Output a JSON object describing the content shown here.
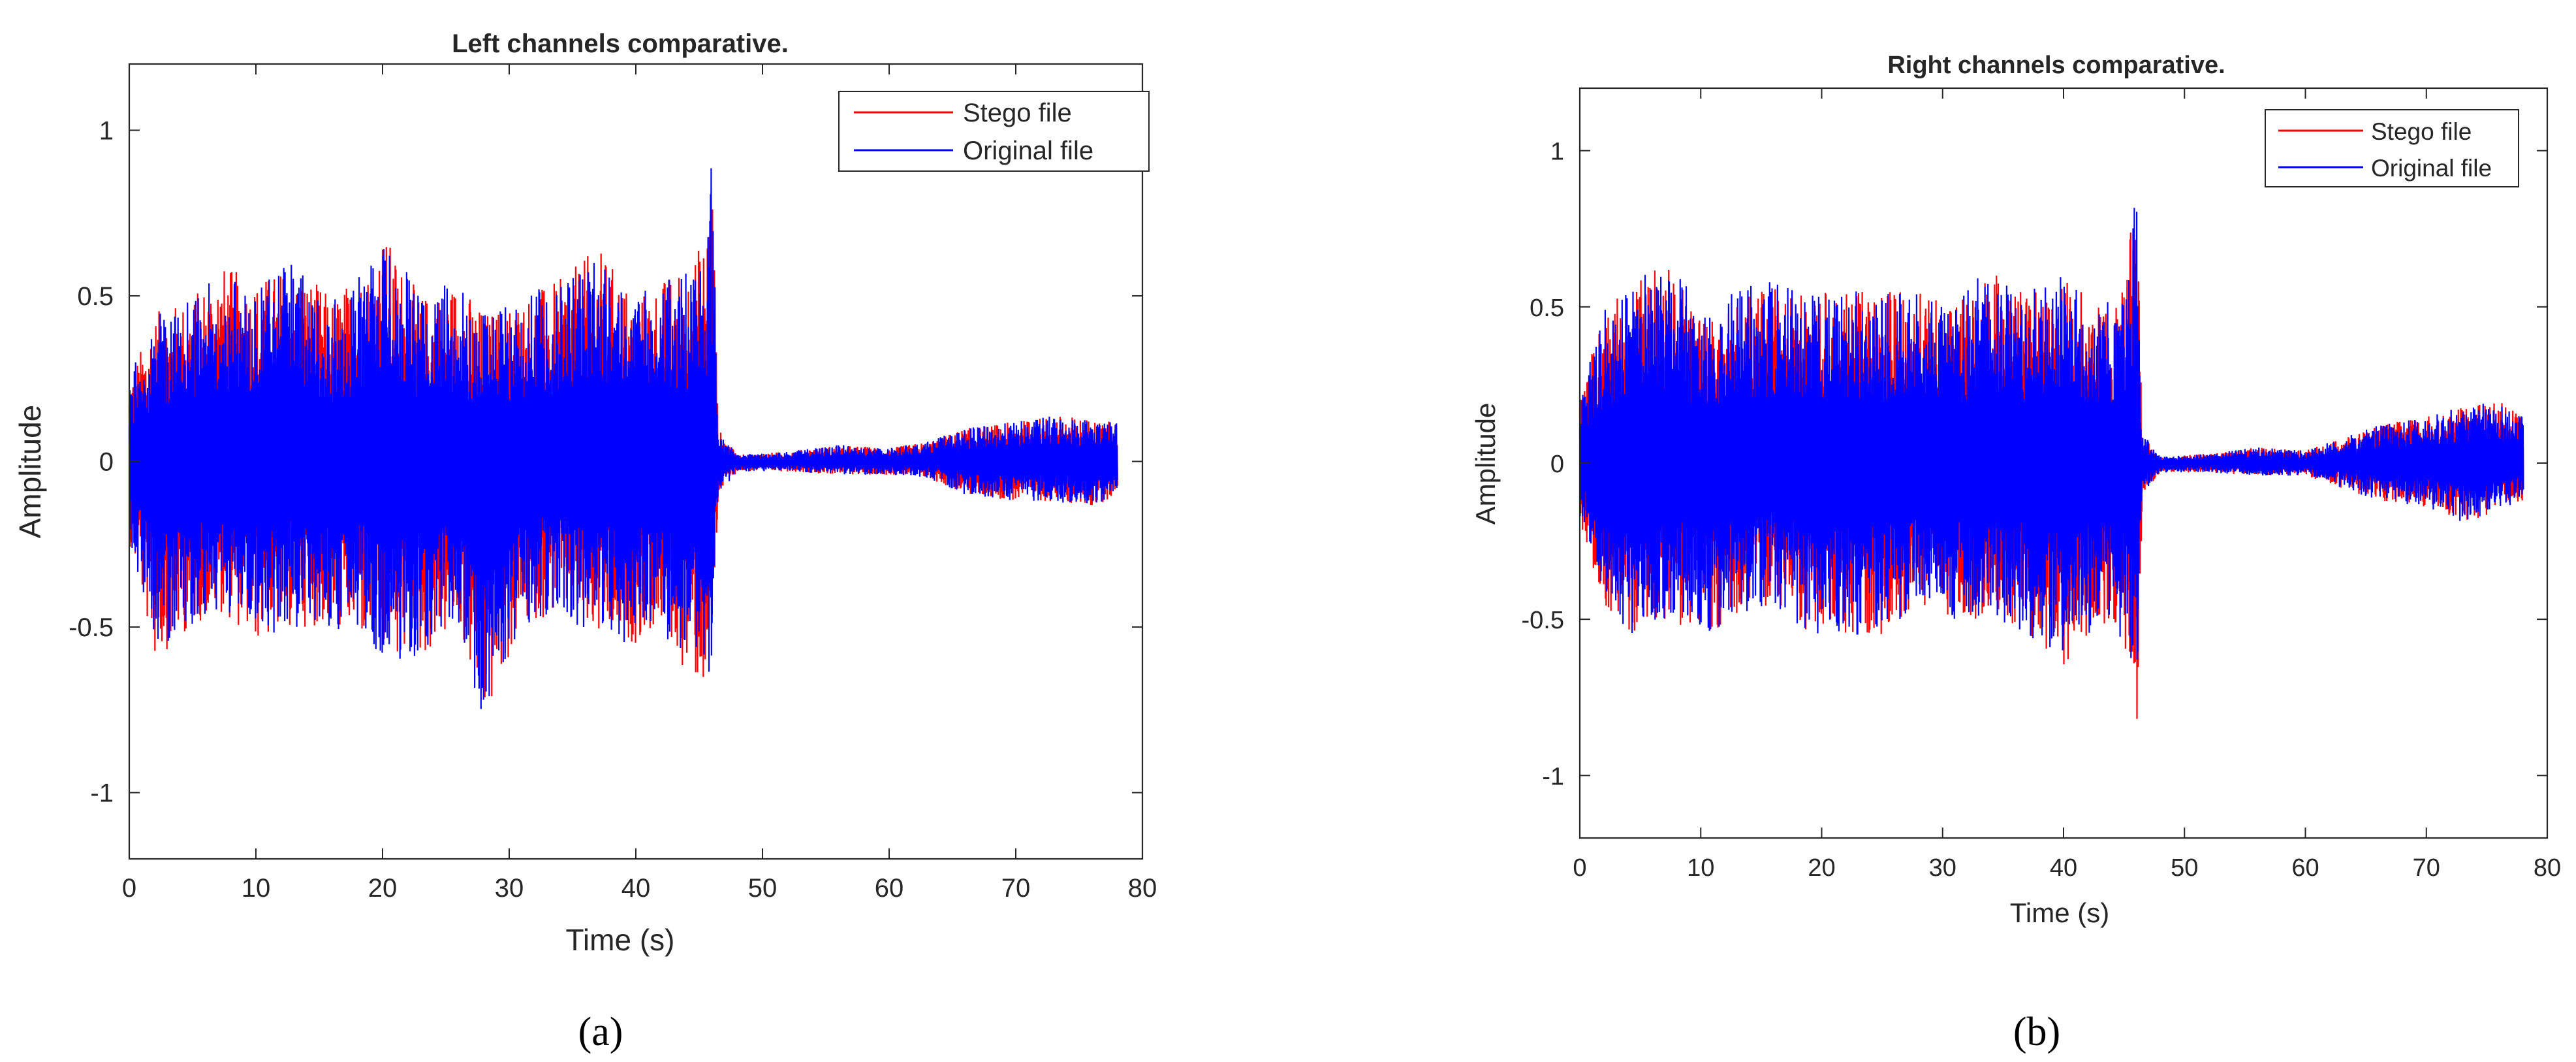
{
  "colors": {
    "stego": "#ff0000",
    "original": "#0000ff",
    "axes": "#262626",
    "background": "#ffffff"
  },
  "charts": [
    {
      "caption": "(a)",
      "title": "Left channels comparative.",
      "xlabel": "Time (s)",
      "ylabel": "Amplitude",
      "x_ticks": [
        "0",
        "10",
        "20",
        "30",
        "40",
        "50",
        "60",
        "70",
        "80"
      ],
      "y_ticks": [
        "-1",
        "-0.5",
        "0",
        "0.5",
        "1"
      ],
      "legend": [
        "Stego file",
        "Original file"
      ]
    },
    {
      "caption": "(b)",
      "title": "Right channels comparative.",
      "xlabel": "Time (s)",
      "ylabel": "Amplitude",
      "x_ticks": [
        "0",
        "10",
        "20",
        "30",
        "40",
        "50",
        "60",
        "70",
        "80"
      ],
      "y_ticks": [
        "-1",
        "-0.5",
        "0",
        "0.5",
        "1"
      ],
      "legend": [
        "Stego file",
        "Original file"
      ]
    }
  ],
  "chart_data": [
    {
      "type": "line",
      "title": "Left channels comparative.",
      "xlabel": "Time (s)",
      "ylabel": "Amplitude",
      "xlim": [
        0,
        80
      ],
      "ylim": [
        -1.2,
        1.2
      ],
      "x_ticks": [
        0,
        10,
        20,
        30,
        40,
        50,
        60,
        70,
        80
      ],
      "y_ticks": [
        -1,
        -0.5,
        0,
        0.5,
        1
      ],
      "grid": false,
      "legend_position": "top-right",
      "description": "audio waveform envelope (peak amplitude per time)",
      "series": [
        {
          "name": "Stego file",
          "color": "#ff0000",
          "x": [
            0,
            2,
            5,
            7,
            10,
            13,
            16,
            19,
            20,
            23,
            26,
            28,
            31,
            34,
            37,
            40,
            42,
            44,
            45.5,
            46,
            46.5,
            48,
            52,
            56,
            60,
            63,
            66,
            70,
            73,
            76,
            78
          ],
          "upper": [
            0.25,
            0.45,
            0.5,
            0.6,
            0.55,
            0.6,
            0.5,
            0.6,
            0.7,
            0.5,
            0.55,
            0.45,
            0.5,
            0.55,
            0.65,
            0.5,
            0.55,
            0.6,
            0.68,
            1.0,
            0.1,
            0.02,
            0.03,
            0.05,
            0.04,
            0.06,
            0.1,
            0.12,
            0.14,
            0.13,
            0.12
          ],
          "lower": [
            -0.25,
            -0.6,
            -0.5,
            -0.45,
            -0.55,
            -0.5,
            -0.5,
            -0.55,
            -0.6,
            -0.6,
            -0.5,
            -0.8,
            -0.5,
            -0.45,
            -0.55,
            -0.55,
            -0.5,
            -0.65,
            -0.7,
            -0.6,
            -0.1,
            -0.03,
            -0.03,
            -0.04,
            -0.04,
            -0.05,
            -0.1,
            -0.12,
            -0.12,
            -0.14,
            -0.1
          ]
        },
        {
          "name": "Original file",
          "color": "#0000ff",
          "x": [
            0,
            2,
            5,
            7,
            10,
            13,
            16,
            19,
            20,
            23,
            26,
            28,
            31,
            34,
            37,
            40,
            42,
            44,
            45.5,
            46,
            46.5,
            48,
            52,
            56,
            60,
            63,
            66,
            70,
            73,
            76,
            78
          ],
          "upper": [
            0.25,
            0.45,
            0.5,
            0.6,
            0.55,
            0.6,
            0.5,
            0.6,
            0.7,
            0.5,
            0.55,
            0.45,
            0.5,
            0.55,
            0.65,
            0.5,
            0.55,
            0.6,
            0.68,
            1.0,
            0.1,
            0.02,
            0.03,
            0.05,
            0.04,
            0.06,
            0.1,
            0.12,
            0.14,
            0.13,
            0.12
          ],
          "lower": [
            -0.25,
            -0.6,
            -0.5,
            -0.45,
            -0.55,
            -0.5,
            -0.5,
            -0.55,
            -0.6,
            -0.6,
            -0.5,
            -0.8,
            -0.5,
            -0.45,
            -0.55,
            -0.55,
            -0.5,
            -0.65,
            -0.7,
            -0.6,
            -0.1,
            -0.03,
            -0.03,
            -0.04,
            -0.04,
            -0.05,
            -0.1,
            -0.12,
            -0.12,
            -0.14,
            -0.1
          ]
        }
      ]
    },
    {
      "type": "line",
      "title": "Right channels comparative.",
      "xlabel": "Time (s)",
      "ylabel": "Amplitude",
      "xlim": [
        0,
        80
      ],
      "ylim": [
        -1.2,
        1.2
      ],
      "x_ticks": [
        0,
        10,
        20,
        30,
        40,
        50,
        60,
        70,
        80
      ],
      "y_ticks": [
        -1,
        -0.5,
        0,
        0.5,
        1
      ],
      "grid": false,
      "legend_position": "top-right",
      "description": "audio waveform envelope (peak amplitude per time)",
      "series": [
        {
          "name": "Stego file",
          "color": "#ff0000",
          "x": [
            0,
            2,
            4,
            7,
            10,
            13,
            16,
            19,
            22,
            25,
            28,
            31,
            34,
            37,
            40,
            43,
            45,
            45.7,
            46,
            46.5,
            48,
            52,
            56,
            60,
            63,
            66,
            70,
            73,
            76,
            78
          ],
          "upper": [
            0.2,
            0.5,
            0.55,
            0.67,
            0.5,
            0.55,
            0.6,
            0.55,
            0.55,
            0.55,
            0.55,
            0.5,
            0.65,
            0.55,
            0.6,
            0.5,
            0.55,
            0.8,
            1.0,
            0.1,
            0.02,
            0.03,
            0.05,
            0.04,
            0.08,
            0.12,
            0.15,
            0.18,
            0.2,
            0.15
          ],
          "lower": [
            -0.2,
            -0.45,
            -0.55,
            -0.5,
            -0.55,
            -0.5,
            -0.45,
            -0.55,
            -0.55,
            -0.55,
            -0.45,
            -0.5,
            -0.5,
            -0.55,
            -0.65,
            -0.5,
            -0.6,
            -0.7,
            -0.97,
            -0.1,
            -0.03,
            -0.03,
            -0.04,
            -0.04,
            -0.08,
            -0.12,
            -0.14,
            -0.2,
            -0.15,
            -0.12
          ]
        },
        {
          "name": "Original file",
          "color": "#0000ff",
          "x": [
            0,
            2,
            4,
            7,
            10,
            13,
            16,
            19,
            22,
            25,
            28,
            31,
            34,
            37,
            40,
            43,
            45,
            45.7,
            46,
            46.5,
            48,
            52,
            56,
            60,
            63,
            66,
            70,
            73,
            76,
            78
          ],
          "upper": [
            0.2,
            0.5,
            0.55,
            0.67,
            0.5,
            0.55,
            0.6,
            0.55,
            0.55,
            0.55,
            0.55,
            0.5,
            0.65,
            0.55,
            0.6,
            0.5,
            0.55,
            0.8,
            1.0,
            0.1,
            0.02,
            0.03,
            0.05,
            0.04,
            0.08,
            0.12,
            0.15,
            0.18,
            0.2,
            0.15
          ],
          "lower": [
            -0.2,
            -0.45,
            -0.55,
            -0.5,
            -0.55,
            -0.5,
            -0.45,
            -0.55,
            -0.55,
            -0.55,
            -0.45,
            -0.5,
            -0.5,
            -0.55,
            -0.65,
            -0.5,
            -0.6,
            -0.7,
            -0.97,
            -0.1,
            -0.03,
            -0.03,
            -0.04,
            -0.04,
            -0.08,
            -0.12,
            -0.14,
            -0.2,
            -0.15,
            -0.12
          ]
        }
      ]
    }
  ]
}
